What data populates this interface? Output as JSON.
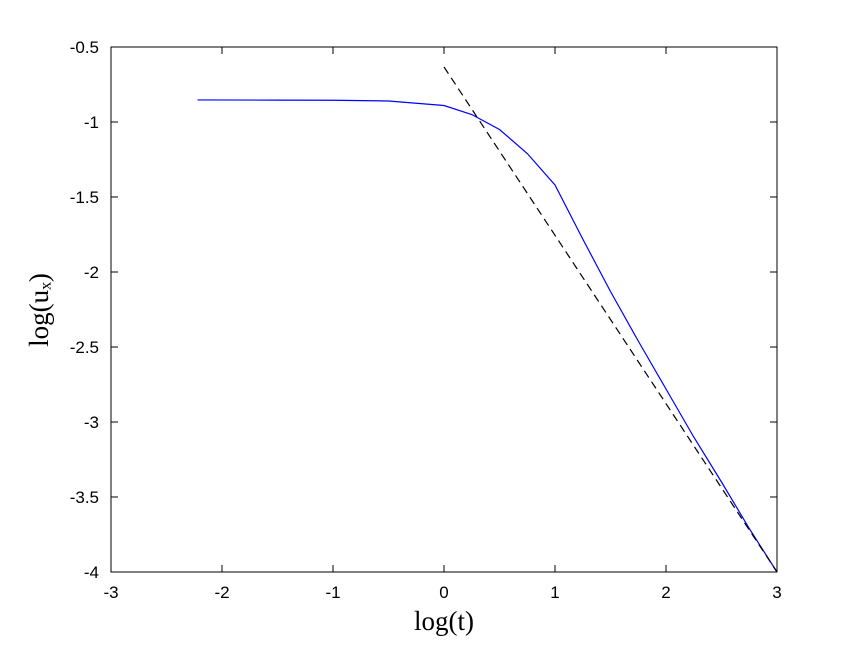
{
  "chart_data": {
    "type": "line",
    "xlabel": "log(t)",
    "ylabel": "log(uₓ)",
    "xlim": [
      -3,
      3
    ],
    "ylim": [
      -4,
      -0.5
    ],
    "xticks": [
      -3,
      -2,
      -1,
      0,
      1,
      2,
      3
    ],
    "yticks": [
      -4,
      -3.5,
      -3,
      -2.5,
      -2,
      -1.5,
      -1,
      -0.5
    ],
    "grid": false,
    "series": [
      {
        "color": "#0000ff",
        "dash": false,
        "x": [
          -2.22,
          -1.5,
          -1,
          -0.5,
          0,
          0.25,
          0.5,
          0.75,
          1,
          1.25,
          1.5,
          1.75,
          2,
          2.25,
          2.5,
          2.75,
          3
        ],
        "values": [
          -0.853,
          -0.854,
          -0.855,
          -0.86,
          -0.89,
          -0.95,
          -1.05,
          -1.21,
          -1.42,
          -1.78,
          -2.13,
          -2.46,
          -2.78,
          -3.1,
          -3.4,
          -3.71,
          -4
        ]
      },
      {
        "color": "#000000",
        "dash": true,
        "x": [
          0,
          3
        ],
        "values": [
          -0.633,
          -4
        ]
      }
    ]
  }
}
